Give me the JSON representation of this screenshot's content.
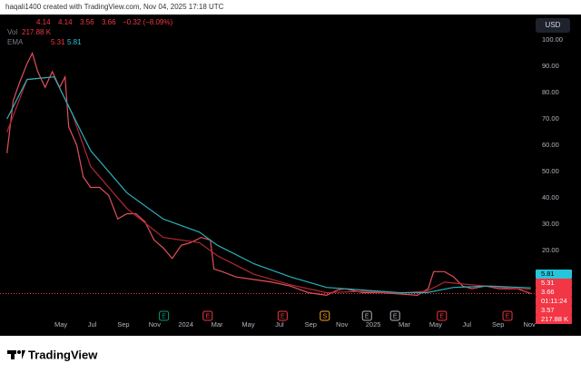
{
  "header": {
    "attribution": "haqali1400 created with TradingView.com, Nov 04, 2025 17:18 UTC",
    "currency": "USD",
    "brand": "TradingView"
  },
  "legend": {
    "open": 4.14,
    "high": 4.14,
    "low": 3.56,
    "close": 3.66,
    "change": "−0.32 (−8.09%)",
    "volume_label": "Vol",
    "volume": "217.88 K",
    "ema_label": "EMA",
    "ema_fast": 5.31,
    "ema_slow": 5.81
  },
  "price_tags": [
    {
      "label": "5.81",
      "color": "#26c6da",
      "text": "#000000"
    },
    {
      "label": "5.31",
      "color": "#f23645",
      "text": "#ffffff"
    },
    {
      "label": "3.66",
      "color": "#f23645",
      "text": "#ffffff"
    },
    {
      "label": "01:11:24",
      "color": "#f23645",
      "text": "#ffffff"
    },
    {
      "label": "3.57",
      "color": "#f23645",
      "text": "#ffffff"
    },
    {
      "label": "217.88 K",
      "color": "#f23645",
      "text": "#ffffff"
    }
  ],
  "chart_data": {
    "type": "line",
    "xlim": [
      -1.9,
      32.4
    ],
    "ylim": [
      -12.4,
      109.7
    ],
    "grid": false,
    "last_price": 3.66,
    "last_price_color": "#f23645",
    "xticks": [
      {
        "value": 2,
        "label": "May"
      },
      {
        "value": 4,
        "label": "Jul"
      },
      {
        "value": 6,
        "label": "Sep"
      },
      {
        "value": 8,
        "label": "Nov"
      },
      {
        "value": 10,
        "label": "2024"
      },
      {
        "value": 12,
        "label": "Mar"
      },
      {
        "value": 14,
        "label": "May"
      },
      {
        "value": 16,
        "label": "Jul"
      },
      {
        "value": 18,
        "label": "Sep"
      },
      {
        "value": 20,
        "label": "Nov"
      },
      {
        "value": 22,
        "label": "2025"
      },
      {
        "value": 24,
        "label": "Mar"
      },
      {
        "value": 26,
        "label": "May"
      },
      {
        "value": 28,
        "label": "Jul"
      },
      {
        "value": 30,
        "label": "Sep"
      },
      {
        "value": 32,
        "label": "Nov"
      }
    ],
    "yticks": [
      {
        "value": 100,
        "label": "100.00"
      },
      {
        "value": 90,
        "label": "90.00"
      },
      {
        "value": 80,
        "label": "80.00"
      },
      {
        "value": 70,
        "label": "70.00"
      },
      {
        "value": 60,
        "label": "60.00"
      },
      {
        "value": 50,
        "label": "50.00"
      },
      {
        "value": 40,
        "label": "40.00"
      },
      {
        "value": 30,
        "label": "30.00"
      },
      {
        "value": 20,
        "label": "20.00"
      }
    ],
    "series": [
      {
        "color": "#e0505c",
        "width": 1.2,
        "x": [
          -1.45,
          -1.05,
          -0.64,
          -0.17,
          0.17,
          0.52,
          0.99,
          1.45,
          1.92,
          2.27,
          2.5,
          3.02,
          3.43,
          3.9,
          4.48,
          5.06,
          5.64,
          6.22,
          6.8,
          7.38,
          7.97,
          8.55,
          9.13,
          9.71,
          10.29,
          10.99,
          11.57,
          11.8,
          12.33,
          13.2,
          14.36,
          15.52,
          16.69,
          17.85,
          19.01,
          19.71,
          20.17,
          21.34,
          22.5,
          23.66,
          24.83,
          25.52,
          25.87,
          26.57,
          27.15,
          27.73,
          28.31,
          29.19,
          30.06,
          31.22,
          32.09
        ],
        "values": [
          57,
          77,
          84,
          91,
          95,
          88,
          82,
          88,
          82,
          86,
          67,
          60,
          48,
          44,
          44,
          41,
          32,
          34,
          34,
          31,
          24,
          21,
          17,
          22,
          23,
          25,
          24,
          13,
          12,
          10,
          9,
          8,
          6.5,
          4,
          3,
          5,
          5.5,
          4,
          4,
          3.5,
          3,
          5.5,
          12,
          12,
          10,
          6.5,
          5.5,
          6.5,
          5.5,
          5.5,
          3.66
        ]
      },
      {
        "color": "#b22833",
        "width": 1.2,
        "x": [
          -1.45,
          -0.17,
          1.57,
          2.73,
          3.9,
          6.22,
          8.55,
          10.87,
          12.03,
          14.36,
          16.69,
          19.01,
          21.34,
          23.66,
          25.41,
          26.57,
          28.31,
          30.64,
          32.09
        ],
        "values": [
          65,
          85,
          86,
          72,
          52,
          36,
          25,
          23,
          18,
          11,
          7,
          4,
          4.5,
          3.8,
          4.5,
          8,
          7,
          5.8,
          5.31
        ]
      },
      {
        "color": "#2ab0b8",
        "width": 1.2,
        "x": [
          -1.45,
          -0.17,
          1.57,
          2.73,
          3.9,
          6.22,
          8.55,
          10.87,
          12.03,
          14.36,
          16.69,
          19.01,
          21.34,
          23.66,
          25.41,
          27.15,
          29.48,
          32.09
        ],
        "values": [
          70,
          85,
          86,
          72,
          58,
          42,
          32,
          27,
          22,
          15,
          10,
          6,
          5,
          4,
          4,
          6,
          6.5,
          5.81
        ]
      }
    ],
    "events": [
      {
        "x": 8.6,
        "label": "E",
        "color": "#089981"
      },
      {
        "x": 11.4,
        "label": "E",
        "color": "#f23645"
      },
      {
        "x": 16.2,
        "label": "E",
        "color": "#f23645"
      },
      {
        "x": 18.9,
        "label": "S",
        "color": "#f7a21b"
      },
      {
        "x": 21.6,
        "label": "E",
        "color": "#b2b5be"
      },
      {
        "x": 23.4,
        "label": "E",
        "color": "#b2b5be"
      },
      {
        "x": 26.4,
        "label": "E",
        "color": "#f23645"
      },
      {
        "x": 30.6,
        "label": "E",
        "color": "#f23645"
      }
    ]
  }
}
